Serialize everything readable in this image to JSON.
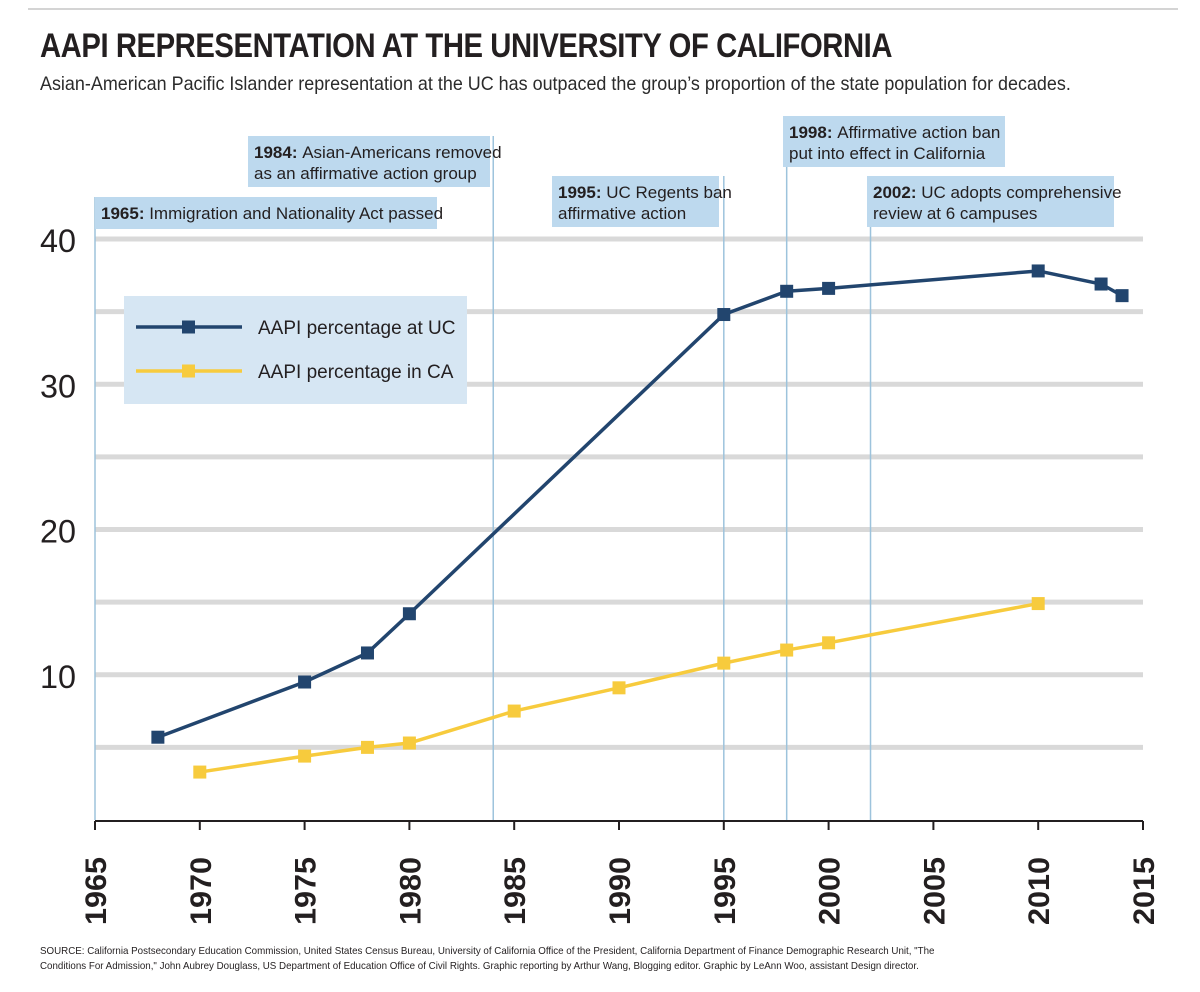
{
  "title": "AAPI REPRESENTATION AT THE UNIVERSITY OF CALIFORNIA",
  "subtitle": "Asian-American Pacific Islander representation at the UC has outpaced the group’s proportion of the state population for decades.",
  "source": "SOURCE: California Postsecondary Education Commission, United States Census Bureau, University of California Office of the President, California Department of Finance Demographic Research Unit, \"The Conditions For Admission,\" John Aubrey Douglass, US Department of Education Office of Civil Rights. Graphic reporting by Arthur Wang, Blogging editor. Graphic by LeAnn Woo, assistant Design director.",
  "colors": {
    "uc": "#22456e",
    "ca": "#f7cb3d",
    "gridline": "#d9d9d9",
    "annotation_line": "#9dc3dc",
    "annotation_box": "#bdd9ee",
    "legend_box": "#d6e6f3",
    "axis": "#231f20"
  },
  "chart_data": {
    "type": "line",
    "title": "AAPI REPRESENTATION AT THE UNIVERSITY OF CALIFORNIA",
    "xlabel": "",
    "ylabel": "",
    "xlim": [
      1965,
      2015
    ],
    "ylim": [
      0,
      40
    ],
    "x_ticks": [
      "1965",
      "1970",
      "1975",
      "1980",
      "1985",
      "1990",
      "1995",
      "2000",
      "2005",
      "2010",
      "2015"
    ],
    "y_ticks": [
      "10",
      "20",
      "30",
      "40"
    ],
    "grid": true,
    "legend_position": "upper-left",
    "series": [
      {
        "name": "AAPI percentage at UC",
        "x": [
          1968,
          1975,
          1978,
          1980,
          1995,
          1998,
          2000,
          2010,
          2013,
          2014
        ],
        "y": [
          5.7,
          9.5,
          11.5,
          14.2,
          34.8,
          36.4,
          36.6,
          37.8,
          36.9,
          36.1
        ]
      },
      {
        "name": "AAPI percentage in CA",
        "x": [
          1970,
          1975,
          1978,
          1980,
          1985,
          1990,
          1995,
          1998,
          2000,
          2010
        ],
        "y": [
          3.3,
          4.4,
          5.0,
          5.3,
          7.5,
          9.1,
          10.8,
          11.7,
          12.2,
          14.9
        ]
      }
    ],
    "annotations": [
      {
        "year": 1965,
        "bold": "1965:",
        "text": [
          "Immigration and Nationality Act passed"
        ]
      },
      {
        "year": 1984,
        "bold": "1984:",
        "text": [
          "Asian-Americans removed",
          "as an affirmative action group"
        ]
      },
      {
        "year": 1995,
        "bold": "1995:",
        "text": [
          "UC Regents ban",
          "affirmative action"
        ]
      },
      {
        "year": 1998,
        "bold": "1998:",
        "text": [
          "Affirmative action ban",
          "put into effect in California"
        ]
      },
      {
        "year": 2002,
        "bold": "2002:",
        "text": [
          "UC adopts comprehensive",
          "review at 6 campuses"
        ]
      }
    ]
  }
}
